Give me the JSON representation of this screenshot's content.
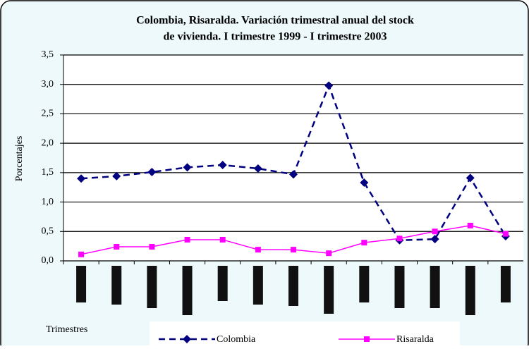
{
  "chart_data": {
    "type": "line",
    "title": "Colombia, Risaralda.  Variación trimestral anual del stock de vivienda.  I trimestre 1999 - I trimestre 2003",
    "x_label": "Trimestres",
    "y_label": "Porcentajes",
    "categories": [
      null,
      null,
      null,
      null,
      null,
      null,
      null,
      null,
      null,
      null,
      null,
      null,
      null
    ],
    "series": [
      {
        "name": "Colombia",
        "color": "#000080",
        "values": [
          1.4,
          1.44,
          1.51,
          1.59,
          1.63,
          1.57,
          1.47,
          2.98,
          1.33,
          0.35,
          0.37,
          1.41,
          0.42
        ]
      },
      {
        "name": "Risaralda",
        "color": "#ff00ff",
        "values": [
          0.11,
          0.24,
          0.24,
          0.36,
          0.36,
          0.19,
          0.19,
          0.13,
          0.31,
          0.38,
          0.5,
          0.6,
          0.46
        ]
      }
    ],
    "ylim": [
      0,
      3.5
    ],
    "yticks": [
      {
        "value": 0,
        "label": "0,0"
      },
      {
        "value": 0.5,
        "label": "0,5"
      },
      {
        "value": 1,
        "label": "1,0"
      },
      {
        "value": 1.5,
        "label": "1,5"
      },
      {
        "value": 2,
        "label": "2,0"
      },
      {
        "value": 2.5,
        "label": "2,5"
      },
      {
        "value": 3,
        "label": "3,0"
      },
      {
        "value": 3.5,
        "label": "3,5"
      }
    ],
    "grid": true
  }
}
